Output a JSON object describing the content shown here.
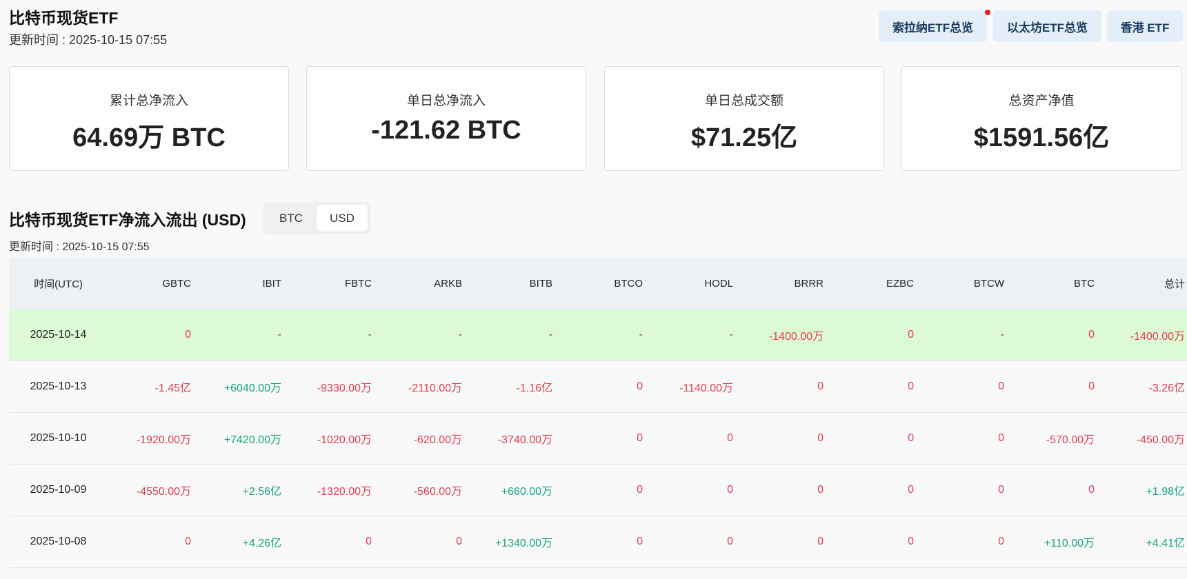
{
  "header": {
    "title": "比特币现货ETF",
    "updated": "更新时间 : 2025-10-15 07:55",
    "buttons": [
      "索拉纳ETF总览",
      "以太坊ETF总览",
      "香港 ETF"
    ]
  },
  "stats": [
    {
      "label": "累计总净流入",
      "value": "64.69万 BTC"
    },
    {
      "label": "单日总净流入",
      "value": "-121.62 BTC"
    },
    {
      "label": "单日总成交额",
      "value": "$71.25亿"
    },
    {
      "label": "总资产净值",
      "value": "$1591.56亿"
    }
  ],
  "section": {
    "title": "比特币现货ETF净流入流出 (USD)",
    "toggle": [
      "BTC",
      "USD"
    ],
    "selected": "USD",
    "updated": "更新时间 : 2025-10-15 07:55"
  },
  "table": {
    "headers": [
      "时间(UTC)",
      "GBTC",
      "IBIT",
      "FBTC",
      "ARKB",
      "BITB",
      "BTCO",
      "HODL",
      "BRRR",
      "EZBC",
      "BTCW",
      "BTC",
      "总计"
    ],
    "rows": [
      {
        "date": "2025-10-14",
        "highlight": true,
        "cells": [
          {
            "v": "0",
            "t": "neg"
          },
          {
            "v": "-",
            "t": "neu"
          },
          {
            "v": "-",
            "t": "neu"
          },
          {
            "v": "-",
            "t": "neu"
          },
          {
            "v": "-",
            "t": "neu"
          },
          {
            "v": "-",
            "t": "neu"
          },
          {
            "v": "-",
            "t": "neu"
          },
          {
            "v": "-1400.00万",
            "t": "neg"
          },
          {
            "v": "0",
            "t": "neg"
          },
          {
            "v": "-",
            "t": "neu"
          },
          {
            "v": "0",
            "t": "neg"
          },
          {
            "v": "-1400.00万",
            "t": "neg"
          }
        ]
      },
      {
        "date": "2025-10-13",
        "highlight": false,
        "cells": [
          {
            "v": "-1.45亿",
            "t": "neg"
          },
          {
            "v": "+6040.00万",
            "t": "pos"
          },
          {
            "v": "-9330.00万",
            "t": "neg"
          },
          {
            "v": "-2110.00万",
            "t": "neg"
          },
          {
            "v": "-1.16亿",
            "t": "neg"
          },
          {
            "v": "0",
            "t": "neg"
          },
          {
            "v": "-1140.00万",
            "t": "neg"
          },
          {
            "v": "0",
            "t": "neg"
          },
          {
            "v": "0",
            "t": "neg"
          },
          {
            "v": "0",
            "t": "neg"
          },
          {
            "v": "0",
            "t": "neg"
          },
          {
            "v": "-3.26亿",
            "t": "neg"
          }
        ]
      },
      {
        "date": "2025-10-10",
        "highlight": false,
        "cells": [
          {
            "v": "-1920.00万",
            "t": "neg"
          },
          {
            "v": "+7420.00万",
            "t": "pos"
          },
          {
            "v": "-1020.00万",
            "t": "neg"
          },
          {
            "v": "-620.00万",
            "t": "neg"
          },
          {
            "v": "-3740.00万",
            "t": "neg"
          },
          {
            "v": "0",
            "t": "neg"
          },
          {
            "v": "0",
            "t": "neg"
          },
          {
            "v": "0",
            "t": "neg"
          },
          {
            "v": "0",
            "t": "neg"
          },
          {
            "v": "0",
            "t": "neg"
          },
          {
            "v": "-570.00万",
            "t": "neg"
          },
          {
            "v": "-450.00万",
            "t": "neg"
          }
        ]
      },
      {
        "date": "2025-10-09",
        "highlight": false,
        "cells": [
          {
            "v": "-4550.00万",
            "t": "neg"
          },
          {
            "v": "+2.56亿",
            "t": "pos"
          },
          {
            "v": "-1320.00万",
            "t": "neg"
          },
          {
            "v": "-560.00万",
            "t": "neg"
          },
          {
            "v": "+660.00万",
            "t": "pos"
          },
          {
            "v": "0",
            "t": "neg"
          },
          {
            "v": "0",
            "t": "neg"
          },
          {
            "v": "0",
            "t": "neg"
          },
          {
            "v": "0",
            "t": "neg"
          },
          {
            "v": "0",
            "t": "neg"
          },
          {
            "v": "0",
            "t": "neg"
          },
          {
            "v": "+1.98亿",
            "t": "pos"
          }
        ]
      },
      {
        "date": "2025-10-08",
        "highlight": false,
        "cells": [
          {
            "v": "0",
            "t": "neg"
          },
          {
            "v": "+4.26亿",
            "t": "pos"
          },
          {
            "v": "0",
            "t": "neg"
          },
          {
            "v": "0",
            "t": "neg"
          },
          {
            "v": "+1340.00万",
            "t": "pos"
          },
          {
            "v": "0",
            "t": "neg"
          },
          {
            "v": "0",
            "t": "neg"
          },
          {
            "v": "0",
            "t": "neg"
          },
          {
            "v": "0",
            "t": "neg"
          },
          {
            "v": "0",
            "t": "neg"
          },
          {
            "v": "+110.00万",
            "t": "pos"
          },
          {
            "v": "+4.41亿",
            "t": "pos"
          }
        ]
      }
    ]
  },
  "colors": {
    "positive": "#17a37a",
    "negative": "#e03e50",
    "highlight_row": "#dcfad4",
    "button_bg": "#e3eef9",
    "notification_dot": "#e81c1c"
  }
}
